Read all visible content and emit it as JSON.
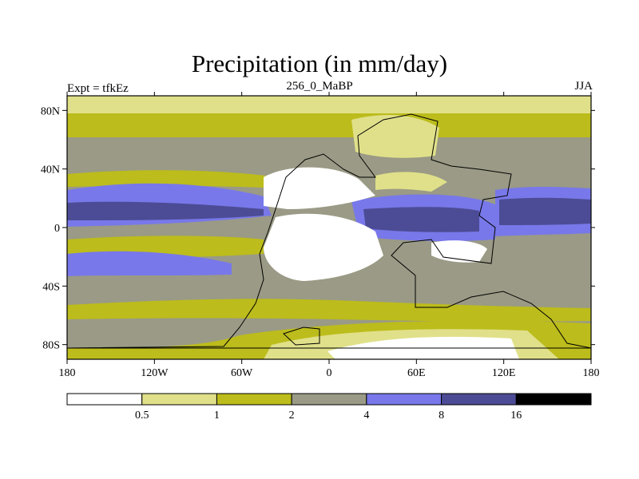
{
  "title": "Precipitation (in mm/day)",
  "left_label": "Expt = tfkEz",
  "center_label": "256_0_MaBP",
  "right_label": "JJA",
  "x_ticks": [
    {
      "label": "180",
      "lon": -180
    },
    {
      "label": "120W",
      "lon": -120
    },
    {
      "label": "60W",
      "lon": -60
    },
    {
      "label": "0",
      "lon": 0
    },
    {
      "label": "60E",
      "lon": 60
    },
    {
      "label": "120E",
      "lon": 120
    },
    {
      "label": "180",
      "lon": 180
    }
  ],
  "y_ticks": [
    {
      "label": "80N",
      "lat": 80
    },
    {
      "label": "40N",
      "lat": 40
    },
    {
      "label": "0",
      "lat": 0
    },
    {
      "label": "40S",
      "lat": -40
    },
    {
      "label": "80S",
      "lat": -80
    }
  ],
  "colorbar": {
    "levels": [
      "0.5",
      "1",
      "2",
      "4",
      "8",
      "16"
    ],
    "colors": [
      "#ffffff",
      "#e0e08a",
      "#bcbc1c",
      "#9a9a86",
      "#7878ea",
      "#4c4c96",
      "#000000"
    ]
  },
  "chart_data": {
    "type": "heatmap",
    "title": "Precipitation (in mm/day)",
    "xlim": [
      -180,
      180
    ],
    "ylim": [
      -90,
      90
    ],
    "contour_bands": [
      {
        "range": "< 0.5",
        "color": "#ffffff"
      },
      {
        "range": "0.5-1",
        "color": "#e0e08a"
      },
      {
        "range": "1-2",
        "color": "#bcbc1c"
      },
      {
        "range": "2-4",
        "color": "#9a9a86"
      },
      {
        "range": "4-8",
        "color": "#7878ea"
      },
      {
        "range": "8-16",
        "color": "#4c4c96"
      },
      {
        "range": "> 16",
        "color": "#000000"
      }
    ]
  }
}
